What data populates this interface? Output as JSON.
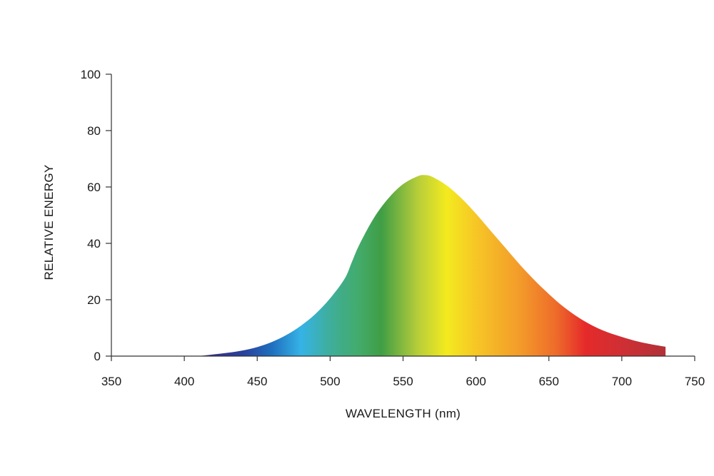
{
  "chart_data": {
    "type": "area",
    "title": "",
    "xlabel": "WAVELENGTH (nm)",
    "ylabel": "RELATIVE ENERGY",
    "xlim": [
      350,
      750
    ],
    "ylim": [
      0,
      100
    ],
    "x_ticks": [
      350,
      400,
      450,
      500,
      550,
      600,
      650,
      700,
      750
    ],
    "y_ticks": [
      0,
      20,
      40,
      60,
      80,
      100
    ],
    "grid": false,
    "legend": "none",
    "series": [
      {
        "x": [
          410,
          420,
          430,
          440,
          450,
          460,
          470,
          480,
          490,
          500,
          510,
          515,
          520,
          530,
          540,
          550,
          560,
          565,
          570,
          580,
          590,
          600,
          610,
          620,
          630,
          640,
          650,
          660,
          670,
          680,
          690,
          700,
          710,
          720,
          730
        ],
        "y": [
          0,
          0.6,
          1.2,
          2.0,
          3.2,
          5.0,
          7.5,
          10.8,
          15.0,
          20.5,
          27.5,
          33.5,
          39.5,
          49.0,
          56.0,
          61.0,
          63.8,
          64.2,
          63.6,
          60.5,
          56.0,
          50.5,
          44.5,
          38.5,
          32.5,
          27.0,
          22.0,
          17.5,
          13.8,
          10.8,
          8.5,
          6.8,
          5.3,
          4.2,
          3.3
        ]
      }
    ],
    "gradient_colors": [
      {
        "nm": 410,
        "color": "#3a2a86"
      },
      {
        "nm": 440,
        "color": "#2a3f9c"
      },
      {
        "nm": 460,
        "color": "#1f6fbf"
      },
      {
        "nm": 480,
        "color": "#35b3e6"
      },
      {
        "nm": 500,
        "color": "#3fae9a"
      },
      {
        "nm": 520,
        "color": "#43ab6a"
      },
      {
        "nm": 535,
        "color": "#3f9e45"
      },
      {
        "nm": 560,
        "color": "#b6cd3a"
      },
      {
        "nm": 580,
        "color": "#f4ea1f"
      },
      {
        "nm": 600,
        "color": "#f6c626"
      },
      {
        "nm": 630,
        "color": "#f39b2a"
      },
      {
        "nm": 655,
        "color": "#ee6b2a"
      },
      {
        "nm": 675,
        "color": "#e52a2a"
      },
      {
        "nm": 700,
        "color": "#cf2f34"
      },
      {
        "nm": 730,
        "color": "#b23138"
      }
    ]
  }
}
